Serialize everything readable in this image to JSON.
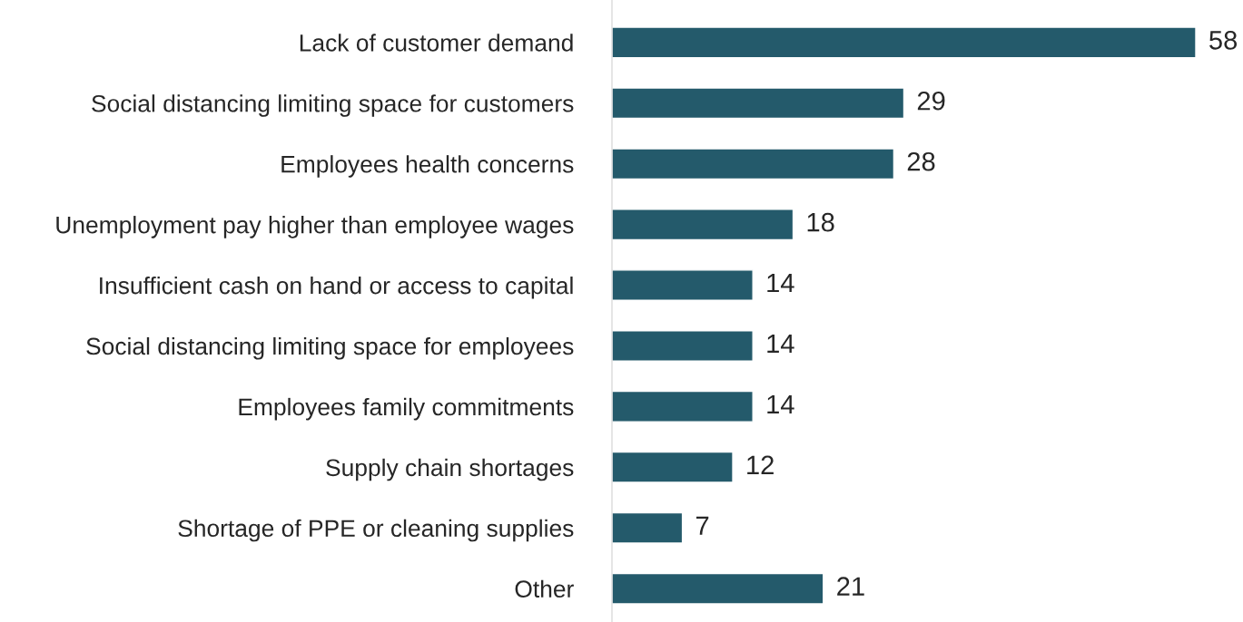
{
  "chart_data": {
    "type": "bar",
    "orientation": "horizontal",
    "categories": [
      "Lack of customer demand",
      "Social distancing limiting space for customers",
      "Employees health concerns",
      "Unemployment pay higher than employee wages",
      "Insufficient cash on hand or access to capital",
      "Social distancing limiting space for employees",
      "Employees family commitments",
      "Supply chain shortages",
      "Shortage of PPE or cleaning supplies",
      "Other"
    ],
    "values": [
      58,
      29,
      28,
      18,
      14,
      14,
      14,
      12,
      7,
      21
    ],
    "color": "#245a6b",
    "data_labels": true,
    "grid": false,
    "legend": false
  }
}
